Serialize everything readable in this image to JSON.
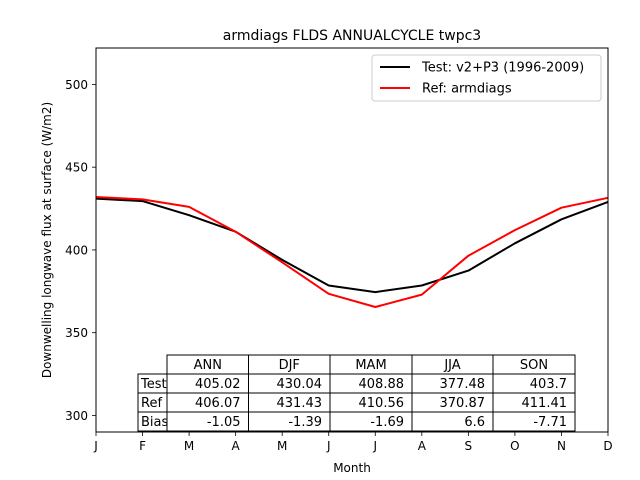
{
  "chart_data": {
    "type": "line",
    "title": "armdiags FLDS ANNUALCYCLE twpc3",
    "xlabel": "Month",
    "ylabel": "Downwelling longwave flux at surface (W/m2)",
    "x": [
      1,
      2,
      3,
      4,
      5,
      6,
      7,
      8,
      9,
      10,
      11,
      12
    ],
    "xtick_labels": [
      "J",
      "F",
      "M",
      "A",
      "M",
      "J",
      "J",
      "A",
      "S",
      "O",
      "N",
      "D"
    ],
    "ylim": [
      290,
      522
    ],
    "yticks": [
      300,
      350,
      400,
      450,
      500
    ],
    "grid": false,
    "legend_position": "top-right",
    "series": [
      {
        "name": "Test: v2+P3 (1996-2009)",
        "color": "#000000",
        "values": [
          431,
          429.5,
          421,
          411,
          394,
          378.5,
          374.5,
          378.5,
          387.5,
          404,
          418.5,
          429
        ]
      },
      {
        "name": "Ref: armdiags",
        "color": "#ff0000",
        "values": [
          432,
          430.5,
          426,
          411,
          392.5,
          373.5,
          365.5,
          373,
          396.5,
          412,
          425.5,
          431.5
        ]
      }
    ],
    "table": {
      "columns": [
        "ANN",
        "DJF",
        "MAM",
        "JJA",
        "SON"
      ],
      "rows": [
        {
          "label": "Test",
          "values": [
            "405.02",
            "430.04",
            "408.88",
            "377.48",
            "403.7"
          ]
        },
        {
          "label": "Ref",
          "values": [
            "406.07",
            "431.43",
            "410.56",
            "370.87",
            "411.41"
          ]
        },
        {
          "label": "Bias",
          "values": [
            "-1.05",
            "-1.39",
            "-1.69",
            "6.6",
            "-7.71"
          ]
        }
      ]
    }
  }
}
